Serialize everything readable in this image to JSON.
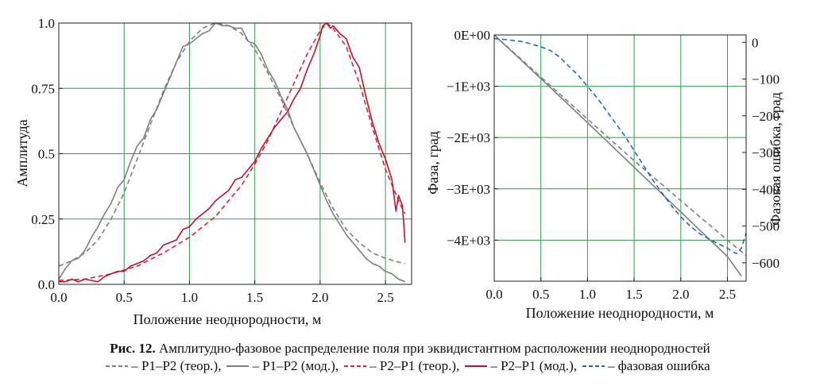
{
  "chart_data": [
    {
      "type": "line",
      "xlabel": "Положение неоднородности, м",
      "ylabel": "Амплитуда",
      "xlim": [
        0,
        2.7
      ],
      "ylim": [
        0,
        1.0
      ],
      "xticks": [
        0,
        0.5,
        1.0,
        1.5,
        2.0,
        2.5
      ],
      "xtick_labels": [
        "0.0",
        "0.5",
        "1.0",
        "1.5",
        "2.0",
        "2.5"
      ],
      "yticks": [
        0,
        0.25,
        0.5,
        0.75,
        1.0
      ],
      "ytick_labels": [
        "0.0",
        "0.25",
        "0.5",
        "0.75",
        "1.0"
      ],
      "grid": true,
      "series": [
        {
          "name": "P1–P2 (теор.)",
          "color": "#808080",
          "dash": true,
          "x": [
            0,
            0.1,
            0.2,
            0.3,
            0.4,
            0.5,
            0.6,
            0.7,
            0.8,
            0.9,
            1.0,
            1.1,
            1.2,
            1.3,
            1.4,
            1.5,
            1.6,
            1.7,
            1.8,
            1.9,
            2.0,
            2.1,
            2.2,
            2.3,
            2.4,
            2.5,
            2.6,
            2.65
          ],
          "y": [
            0.07,
            0.09,
            0.12,
            0.17,
            0.25,
            0.35,
            0.48,
            0.61,
            0.74,
            0.85,
            0.93,
            0.98,
            1.0,
            0.99,
            0.96,
            0.9,
            0.81,
            0.71,
            0.6,
            0.5,
            0.39,
            0.29,
            0.21,
            0.16,
            0.12,
            0.1,
            0.085,
            0.08
          ]
        },
        {
          "name": "P1–P2 (мод.)",
          "color": "#808080",
          "dash": false,
          "x": [
            0,
            0.05,
            0.1,
            0.15,
            0.2,
            0.25,
            0.3,
            0.35,
            0.4,
            0.45,
            0.5,
            0.55,
            0.6,
            0.65,
            0.7,
            0.75,
            0.8,
            0.85,
            0.9,
            0.95,
            1.0,
            1.05,
            1.1,
            1.15,
            1.2,
            1.25,
            1.3,
            1.35,
            1.4,
            1.45,
            1.5,
            1.55,
            1.6,
            1.65,
            1.7,
            1.75,
            1.8,
            1.85,
            1.9,
            1.95,
            2.0,
            2.05,
            2.1,
            2.15,
            2.2,
            2.25,
            2.3,
            2.35,
            2.4,
            2.45,
            2.5,
            2.55,
            2.6,
            2.65
          ],
          "y": [
            0.02,
            0.06,
            0.09,
            0.1,
            0.13,
            0.18,
            0.22,
            0.27,
            0.31,
            0.37,
            0.4,
            0.47,
            0.53,
            0.56,
            0.63,
            0.67,
            0.73,
            0.79,
            0.85,
            0.91,
            0.92,
            0.94,
            0.96,
            0.97,
            1.0,
            0.99,
            0.99,
            0.98,
            0.98,
            0.93,
            0.92,
            0.88,
            0.82,
            0.78,
            0.72,
            0.67,
            0.6,
            0.55,
            0.5,
            0.44,
            0.38,
            0.32,
            0.27,
            0.23,
            0.19,
            0.16,
            0.13,
            0.1,
            0.08,
            0.07,
            0.05,
            0.04,
            0.02,
            0.01
          ]
        },
        {
          "name": "P2–P1 (теор.)",
          "color": "#e8202a",
          "dash": true,
          "x": [
            0,
            0.2,
            0.4,
            0.6,
            0.8,
            1.0,
            1.2,
            1.4,
            1.5,
            1.6,
            1.7,
            1.8,
            1.9,
            2.0,
            2.05,
            2.1,
            2.2,
            2.3,
            2.4,
            2.5,
            2.6,
            2.65
          ],
          "y": [
            0.015,
            0.02,
            0.04,
            0.07,
            0.12,
            0.18,
            0.26,
            0.38,
            0.46,
            0.55,
            0.66,
            0.77,
            0.88,
            0.97,
            1.0,
            0.98,
            0.91,
            0.77,
            0.6,
            0.44,
            0.32,
            0.27
          ]
        },
        {
          "name": "P2–P1 (мод.)",
          "color": "#c8102e",
          "dash": false,
          "x": [
            0,
            0.05,
            0.1,
            0.15,
            0.2,
            0.25,
            0.3,
            0.35,
            0.4,
            0.45,
            0.5,
            0.55,
            0.6,
            0.65,
            0.7,
            0.75,
            0.8,
            0.85,
            0.9,
            0.95,
            1.0,
            1.05,
            1.1,
            1.15,
            1.2,
            1.25,
            1.3,
            1.35,
            1.4,
            1.45,
            1.5,
            1.55,
            1.6,
            1.65,
            1.7,
            1.75,
            1.8,
            1.85,
            1.9,
            1.95,
            2.0,
            2.02,
            2.05,
            2.08,
            2.1,
            2.15,
            2.2,
            2.25,
            2.3,
            2.35,
            2.4,
            2.45,
            2.5,
            2.55,
            2.58,
            2.6,
            2.63,
            2.65
          ],
          "y": [
            0.01,
            0.01,
            0.02,
            0.01,
            0.02,
            0.015,
            0.01,
            0.03,
            0.04,
            0.05,
            0.05,
            0.07,
            0.08,
            0.09,
            0.11,
            0.12,
            0.15,
            0.16,
            0.17,
            0.21,
            0.22,
            0.25,
            0.27,
            0.29,
            0.32,
            0.34,
            0.36,
            0.4,
            0.41,
            0.44,
            0.47,
            0.52,
            0.56,
            0.6,
            0.63,
            0.66,
            0.71,
            0.75,
            0.82,
            0.88,
            0.95,
            0.99,
            1.0,
            0.98,
            0.99,
            0.96,
            0.94,
            0.87,
            0.83,
            0.72,
            0.62,
            0.54,
            0.48,
            0.4,
            0.28,
            0.34,
            0.3,
            0.16
          ]
        }
      ]
    },
    {
      "type": "line",
      "xlabel": "Положение неоднородности, м",
      "ylabel": "Фаза, град",
      "ylabel_right": "Фазовая ошибка, град",
      "xlim": [
        0,
        2.7
      ],
      "ylim": [
        -4800,
        0
      ],
      "ylim_right": [
        -650,
        20
      ],
      "xticks": [
        0,
        0.5,
        1.0,
        1.5,
        2.0,
        2.5
      ],
      "xtick_labels": [
        "0.0",
        "0.5",
        "1.0",
        "1.5",
        "2.0",
        "2.5"
      ],
      "yticks": [
        0,
        -1000,
        -2000,
        -3000,
        -4000
      ],
      "ytick_labels": [
        "0E+00",
        "−1E+03",
        "−2E+03",
        "−3E+03",
        "−4E+03"
      ],
      "yticks_right": [
        0,
        -100,
        -200,
        -300,
        -400,
        -500,
        -600
      ],
      "ytick_labels_right": [
        "0",
        "−100",
        "−200",
        "−300",
        "−400",
        "−500",
        "−600"
      ],
      "grid": true,
      "series": [
        {
          "name": "P1–P2 (теор.)",
          "color": "#808080",
          "dash": true,
          "axis": "left",
          "x": [
            0,
            0.5,
            1.0,
            1.5,
            2.0,
            2.5,
            2.7
          ],
          "y": [
            0,
            -820,
            -1640,
            -2450,
            -3230,
            -4000,
            -4300
          ]
        },
        {
          "name": "P1–P2 (мод.)",
          "color": "#808080",
          "dash": false,
          "axis": "left",
          "x": [
            0,
            0.5,
            1.0,
            1.5,
            2.0,
            2.5,
            2.65
          ],
          "y": [
            0,
            -850,
            -1710,
            -2580,
            -3450,
            -4320,
            -4700
          ]
        },
        {
          "name": "фазовая ошибка",
          "color": "#1f6fb0",
          "dash": true,
          "axis": "right",
          "x": [
            0,
            0.1,
            0.2,
            0.3,
            0.4,
            0.5,
            0.6,
            0.7,
            0.8,
            0.9,
            1.0,
            1.1,
            1.2,
            1.3,
            1.4,
            1.5,
            1.6,
            1.7,
            1.8,
            1.9,
            2.0,
            2.1,
            2.2,
            2.3,
            2.4,
            2.5,
            2.55,
            2.6,
            2.65,
            2.7
          ],
          "y": [
            10,
            8,
            5,
            2,
            -5,
            -12,
            -22,
            -40,
            -65,
            -90,
            -120,
            -150,
            -185,
            -220,
            -255,
            -295,
            -335,
            -375,
            -410,
            -445,
            -475,
            -500,
            -520,
            -535,
            -548,
            -560,
            -570,
            -575,
            -560,
            -520
          ]
        }
      ]
    }
  ],
  "caption": {
    "lead": "Рис. 12.",
    "text": "Амплитудно-фазовое распределение поля при эквидистантном расположении неоднородностей",
    "legend": [
      {
        "label": "– P1–P2 (теор.),",
        "color": "#808080",
        "dash": true
      },
      {
        "label": "– P1–P2 (мод.),",
        "color": "#808080",
        "dash": false
      },
      {
        "label": "– P2–P1 (теор.),",
        "color": "#e8202a",
        "dash": true
      },
      {
        "label": "– P2–P1 (мод.),",
        "color": "#c8102e",
        "dash": false
      },
      {
        "label": "– фазовая ошибка",
        "color": "#1f6fb0",
        "dash": true
      }
    ]
  }
}
